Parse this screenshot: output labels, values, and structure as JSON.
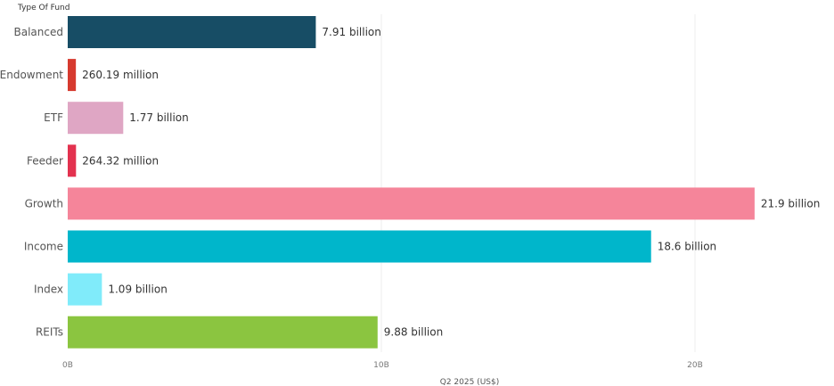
{
  "chart_data": {
    "type": "bar",
    "orientation": "horizontal",
    "column_header": "Type Of Fund",
    "xlabel": "Q2 2025 (US$)",
    "ylabel": "",
    "categories": [
      "Balanced",
      "Endowment",
      "ETF",
      "Feeder",
      "Growth",
      "Income",
      "Index",
      "REITs"
    ],
    "values": [
      7.91,
      0.26019,
      1.77,
      0.26432,
      21.9,
      18.6,
      1.09,
      9.88
    ],
    "value_units": "billion",
    "data_labels": [
      "7.91 billion",
      "260.19 million",
      "1.77 billion",
      "264.32 million",
      "21.9 billion",
      "18.6 billion",
      "1.09 billion",
      "9.88 billion"
    ],
    "colors": [
      "#174d65",
      "#d63a2f",
      "#dfa6c4",
      "#e3324f",
      "#f5859a",
      "#00b6cb",
      "#80ebfa",
      "#8bc540"
    ],
    "xlim": [
      0,
      25
    ],
    "ticks": [
      0,
      10,
      20
    ],
    "tick_labels": [
      "0B",
      "10B",
      "20B"
    ],
    "grid": true
  }
}
